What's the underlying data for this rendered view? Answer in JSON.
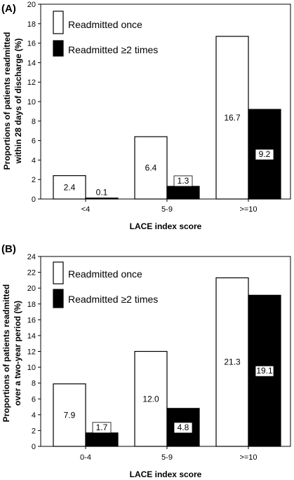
{
  "chart_data": [
    {
      "type": "bar",
      "panel_label": "(A)",
      "categories": [
        "<4",
        "5-9",
        ">=10"
      ],
      "series": [
        {
          "name": "Readmitted once",
          "values": [
            2.4,
            6.4,
            16.7
          ],
          "color": "#ffffff"
        },
        {
          "name": "Readmitted ≥2 times",
          "values": [
            0.1,
            1.3,
            9.2
          ],
          "color": "#000000"
        }
      ],
      "data_labels": [
        [
          "2.4",
          "6.4",
          "16.7"
        ],
        [
          "0.1",
          "1.3",
          "9.2"
        ]
      ],
      "xlabel": "LACE index score",
      "ylabel_lines": [
        "Proportions of patients readmitted",
        "within 28 days of discharge (%)"
      ],
      "ylim": [
        0,
        20
      ],
      "yticks": [
        0,
        2,
        4,
        6,
        8,
        10,
        12,
        14,
        16,
        18,
        20
      ],
      "legend": "top-left",
      "grid": false
    },
    {
      "type": "bar",
      "panel_label": "(B)",
      "categories": [
        "0-4",
        "5-9",
        ">=10"
      ],
      "series": [
        {
          "name": "Readmitted once",
          "values": [
            7.9,
            12.0,
            21.3
          ],
          "color": "#ffffff"
        },
        {
          "name": "Readmitted ≥2 times",
          "values": [
            1.7,
            4.8,
            19.1
          ],
          "color": "#000000"
        }
      ],
      "data_labels": [
        [
          "7.9",
          "12.0",
          "21.3"
        ],
        [
          "1.7",
          "4.8",
          "19.1"
        ]
      ],
      "xlabel": "LACE index score",
      "ylabel_lines": [
        "Proportions of patients readmitted",
        "over a two-year period (%)"
      ],
      "ylim": [
        0,
        24
      ],
      "yticks": [
        0,
        2,
        4,
        6,
        8,
        10,
        12,
        14,
        16,
        18,
        20,
        22,
        24
      ],
      "legend": "top-left",
      "grid": false
    }
  ]
}
